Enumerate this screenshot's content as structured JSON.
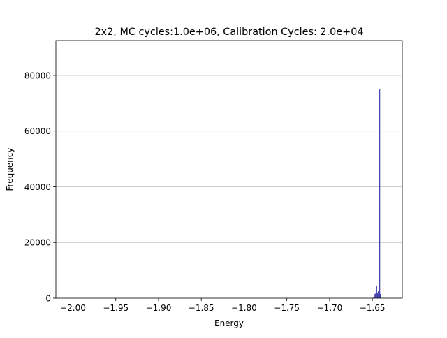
{
  "chart_data": {
    "type": "bar",
    "title": "2x2, MC cycles:1.0e+06, Calibration Cycles: 2.0e+04",
    "xlabel": "Energy",
    "ylabel": "Frequency",
    "xlim": [
      -2.02,
      -1.615
    ],
    "ylim": [
      0,
      92500
    ],
    "x_ticks": [
      -2.0,
      -1.95,
      -1.9,
      -1.85,
      -1.8,
      -1.75,
      -1.7,
      -1.65
    ],
    "x_tick_labels": [
      "−2.00",
      "−1.95",
      "−1.90",
      "−1.85",
      "−1.80",
      "−1.75",
      "−1.70",
      "−1.65"
    ],
    "y_ticks": [
      0,
      20000,
      40000,
      60000,
      80000
    ],
    "y_tick_labels": [
      "0",
      "20000",
      "40000",
      "60000",
      "80000"
    ],
    "grid": "y",
    "bar_color": "#3b3bab",
    "bins": [
      {
        "x": -1.6485,
        "value": 500
      },
      {
        "x": -1.647,
        "value": 1500
      },
      {
        "x": -1.646,
        "value": 2000
      },
      {
        "x": -1.645,
        "value": 4500
      },
      {
        "x": -1.644,
        "value": 1800
      },
      {
        "x": -1.643,
        "value": 2500
      },
      {
        "x": -1.6422,
        "value": 34500
      },
      {
        "x": -1.6414,
        "value": 75000
      },
      {
        "x": -1.6406,
        "value": 1500
      }
    ]
  }
}
